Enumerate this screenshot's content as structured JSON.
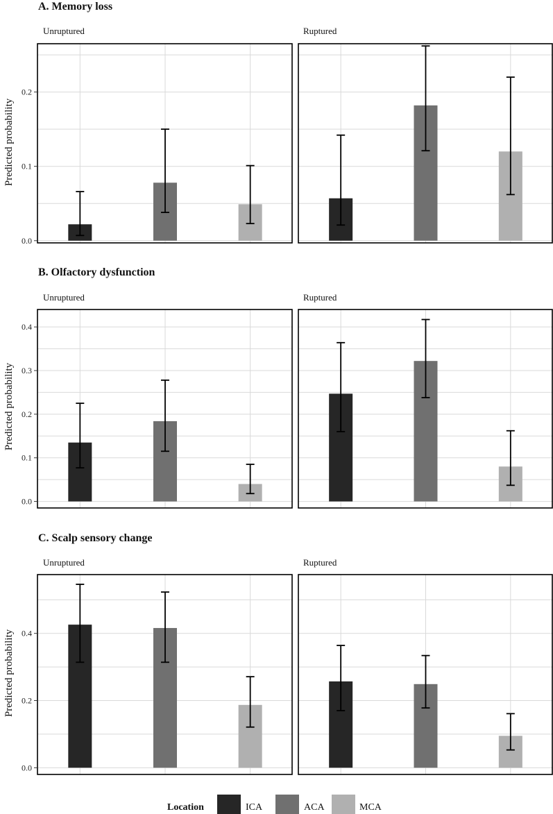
{
  "legend": {
    "title": "Location",
    "items": [
      {
        "label": "ICA",
        "color": "#262626"
      },
      {
        "label": "ACA",
        "color": "#707070"
      },
      {
        "label": "MCA",
        "color": "#b0b0b0"
      }
    ]
  },
  "chart_data": [
    {
      "type": "bar",
      "title": "A. Memory loss",
      "ylabel": "Predicted probability",
      "ylim": [
        -0.003,
        0.265
      ],
      "yticks": [
        0.0,
        0.1,
        0.2
      ],
      "tick_labels": [
        "0.0",
        "0.1",
        "0.2"
      ],
      "categories": [
        "ICA",
        "ACA",
        "MCA"
      ],
      "facets": [
        {
          "label": "Unruptured",
          "values": [
            0.022,
            0.078,
            0.049
          ],
          "lower": [
            0.007,
            0.038,
            0.023
          ],
          "upper": [
            0.066,
            0.15,
            0.101
          ]
        },
        {
          "label": "Ruptured",
          "values": [
            0.057,
            0.182,
            0.12
          ],
          "lower": [
            0.021,
            0.121,
            0.062
          ],
          "upper": [
            0.142,
            0.262,
            0.22
          ]
        }
      ]
    },
    {
      "type": "bar",
      "title": "B. Olfactory dysfunction",
      "ylabel": "Predicted probability",
      "ylim": [
        -0.015,
        0.44
      ],
      "yticks": [
        0.0,
        0.1,
        0.2,
        0.3,
        0.4
      ],
      "tick_labels": [
        "0.0",
        "0.1",
        "0.2",
        "0.3",
        "0.4"
      ],
      "categories": [
        "ICA",
        "ACA",
        "MCA"
      ],
      "facets": [
        {
          "label": "Unruptured",
          "values": [
            0.135,
            0.184,
            0.04
          ],
          "lower": [
            0.077,
            0.115,
            0.018
          ],
          "upper": [
            0.225,
            0.278,
            0.085
          ]
        },
        {
          "label": "Ruptured",
          "values": [
            0.247,
            0.322,
            0.08
          ],
          "lower": [
            0.16,
            0.238,
            0.037
          ],
          "upper": [
            0.364,
            0.417,
            0.162
          ]
        }
      ]
    },
    {
      "type": "bar",
      "title": "C. Scalp sensory change",
      "ylabel": "Predicted probability",
      "ylim": [
        -0.02,
        0.575
      ],
      "yticks": [
        0.0,
        0.2,
        0.4
      ],
      "tick_labels": [
        "0.0",
        "0.2",
        "0.4"
      ],
      "categories": [
        "ICA",
        "ACA",
        "MCA"
      ],
      "facets": [
        {
          "label": "Unruptured",
          "values": [
            0.426,
            0.416,
            0.187
          ],
          "lower": [
            0.314,
            0.314,
            0.121
          ],
          "upper": [
            0.546,
            0.523,
            0.271
          ]
        },
        {
          "label": "Ruptured",
          "values": [
            0.257,
            0.249,
            0.095
          ],
          "lower": [
            0.17,
            0.178,
            0.053
          ],
          "upper": [
            0.364,
            0.334,
            0.161
          ]
        }
      ]
    }
  ]
}
